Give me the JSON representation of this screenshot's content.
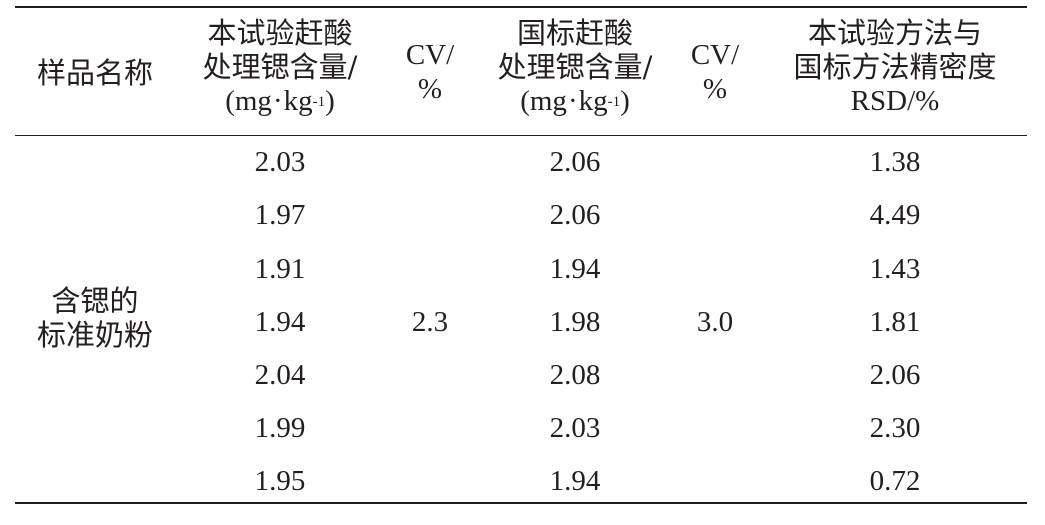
{
  "table": {
    "headers": {
      "sample_name": "样品名称",
      "col1_line1": "本试验赶酸",
      "col1_line2": "处理锶含量/",
      "col1_unit_mg": "mg",
      "col1_unit_dot": "·",
      "col1_unit_kg": "kg",
      "col1_unit_sup": "-1",
      "cv1_line1": "CV/",
      "cv1_line2": "%",
      "col3_line1": "国标赶酸",
      "col3_line2": "处理锶含量/",
      "col3_unit_mg": "mg",
      "col3_unit_dot": "·",
      "col3_unit_kg": "kg",
      "col3_unit_sup": "-1",
      "cv2_line1": "CV/",
      "cv2_line2": "%",
      "col5_line1": "本试验方法与",
      "col5_line2": "国标方法精密度",
      "col5_line3": "RSD/%"
    },
    "sample_name_line1": "含锶的",
    "sample_name_line2": "标准奶粉",
    "cv_this_method": "2.3",
    "cv_national": "3.0",
    "rows": [
      {
        "this_method": "2.03",
        "national": "2.06",
        "rsd": "1.38"
      },
      {
        "this_method": "1.97",
        "national": "2.06",
        "rsd": "4.49"
      },
      {
        "this_method": "1.91",
        "national": "1.94",
        "rsd": "1.43"
      },
      {
        "this_method": "1.94",
        "national": "1.98",
        "rsd": "1.81"
      },
      {
        "this_method": "2.04",
        "national": "2.08",
        "rsd": "2.06"
      },
      {
        "this_method": "1.99",
        "national": "2.03",
        "rsd": "2.30"
      },
      {
        "this_method": "1.95",
        "national": "1.94",
        "rsd": "0.72"
      }
    ]
  }
}
